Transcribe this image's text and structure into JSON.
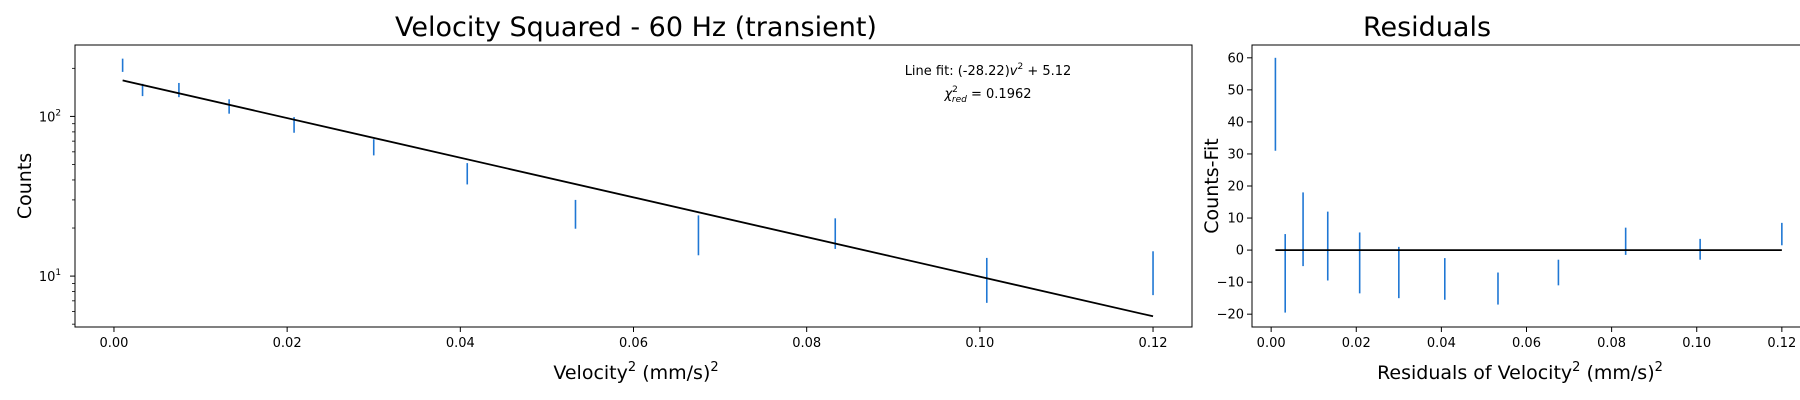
{
  "chart_data": [
    {
      "type": "scatter",
      "title": "Velocity Squared - 60 Hz  (transient)",
      "xlabel_main": "Velocity",
      "xlabel_sup": "2",
      "xlabel_unit": " (mm/s)",
      "xlabel_unit_sup": "2",
      "ylabel": "Counts",
      "yscale": "log",
      "xlim": [
        -0.0045,
        0.1245
      ],
      "ylim": [
        4.8,
        280
      ],
      "xticks": [
        0.0,
        0.02,
        0.04,
        0.06,
        0.08,
        0.1,
        0.12
      ],
      "xtick_labels": [
        "0.00",
        "0.02",
        "0.04",
        "0.06",
        "0.08",
        "0.10",
        "0.12"
      ],
      "ymajor_ticks": [
        10,
        100
      ],
      "ytick_label_base": "10",
      "ytick_label_exps": [
        "1",
        "2"
      ],
      "errorbar_color": "#1f77d4",
      "fit_color": "#000000",
      "series": [
        {
          "x": [
            0.001,
            0.0033,
            0.0075,
            0.0133,
            0.0208,
            0.03,
            0.0408,
            0.0533,
            0.0675,
            0.0833,
            0.1008,
            0.12
          ],
          "y_low": [
            190,
            134,
            132,
            104,
            79,
            57,
            37.5,
            19.8,
            13.5,
            14.8,
            6.8,
            7.6
          ],
          "y_high": [
            230,
            160,
            162,
            128,
            99,
            72,
            51,
            30,
            24,
            23,
            13,
            14.3
          ]
        }
      ],
      "fit": {
        "x": [
          0.001,
          0.12
        ],
        "y": [
          168,
          5.6
        ]
      },
      "annotation_line1_prefix": "Line fit: (-28.22)",
      "annotation_line1_v": "v",
      "annotation_line1_sup": "2",
      "annotation_line1_suffix": " + 5.12",
      "annotation_line2_chi": "χ",
      "annotation_line2_sup": "2",
      "annotation_line2_sub": "red",
      "annotation_line2_value": " = 0.1962"
    },
    {
      "type": "scatter",
      "title": "Residuals",
      "xlabel_main": "Residuals of Velocity",
      "xlabel_sup": "2",
      "xlabel_unit": " (mm/s)",
      "xlabel_unit_sup": "2",
      "ylabel": "Counts-Fit",
      "xlim": [
        -0.0045,
        0.1245
      ],
      "ylim": [
        -24,
        64
      ],
      "xticks": [
        0.0,
        0.02,
        0.04,
        0.06,
        0.08,
        0.1,
        0.12
      ],
      "xtick_labels": [
        "0.00",
        "0.02",
        "0.04",
        "0.06",
        "0.08",
        "0.10",
        "0.12"
      ],
      "yticks": [
        -20,
        -10,
        0,
        10,
        20,
        30,
        40,
        50,
        60
      ],
      "ytick_labels": [
        "−20",
        "−10",
        "0",
        "10",
        "20",
        "30",
        "40",
        "50",
        "60"
      ],
      "errorbar_color": "#1f77d4",
      "zero_line_color": "#000000",
      "series": [
        {
          "x": [
            0.001,
            0.0033,
            0.0075,
            0.0133,
            0.0208,
            0.03,
            0.0408,
            0.0533,
            0.0675,
            0.0833,
            0.1008,
            0.12
          ],
          "y_low": [
            31,
            -19.5,
            -5,
            -9.5,
            -13.5,
            -15,
            -15.5,
            -17,
            -11,
            -1.5,
            -3,
            1.5
          ],
          "y_high": [
            60,
            5,
            18,
            12,
            5.5,
            1,
            -2.5,
            -7,
            -3,
            7,
            3.5,
            8.5
          ]
        }
      ],
      "zero_line": {
        "x": [
          0.001,
          0.12
        ],
        "y": [
          0,
          0
        ]
      }
    }
  ]
}
